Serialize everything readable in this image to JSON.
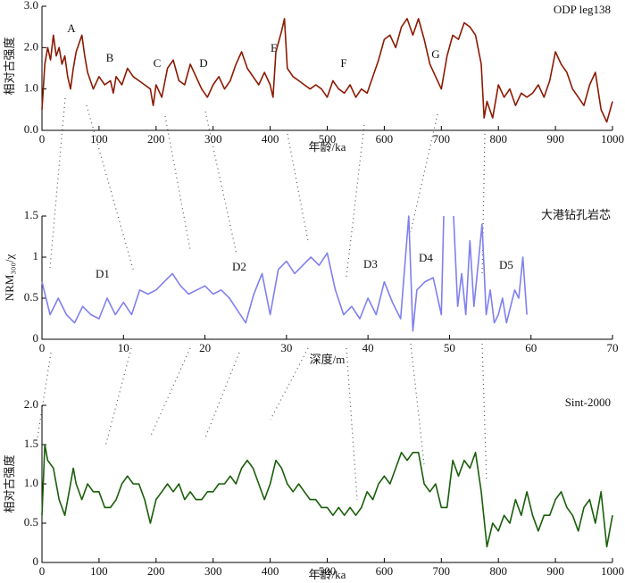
{
  "chart_data": [
    {
      "type": "line",
      "title": "ODP leg138",
      "xlabel": "年龄/ka",
      "ylabel": "相对古强度",
      "color": "#8b1a00",
      "annotations": [
        "A",
        "B",
        "C",
        "D",
        "E",
        "F",
        "G"
      ],
      "x": [
        0,
        5,
        10,
        15,
        20,
        25,
        30,
        35,
        40,
        45,
        50,
        55,
        60,
        65,
        70,
        75,
        80,
        85,
        90,
        100,
        110,
        120,
        125,
        130,
        140,
        150,
        160,
        170,
        180,
        190,
        195,
        200,
        210,
        220,
        230,
        240,
        250,
        260,
        270,
        280,
        290,
        300,
        310,
        320,
        330,
        340,
        350,
        360,
        370,
        380,
        390,
        400,
        405,
        410,
        420,
        425,
        430,
        440,
        450,
        460,
        470,
        480,
        490,
        500,
        510,
        520,
        530,
        540,
        550,
        560,
        570,
        580,
        590,
        600,
        610,
        620,
        630,
        640,
        650,
        660,
        670,
        680,
        690,
        700,
        710,
        720,
        730,
        740,
        750,
        760,
        770,
        775,
        780,
        790,
        800,
        810,
        820,
        830,
        840,
        850,
        860,
        870,
        880,
        890,
        900,
        910,
        920,
        930,
        940,
        950,
        960,
        970,
        980,
        990,
        1000
      ],
      "values": [
        0.5,
        1.6,
        2.0,
        1.7,
        2.3,
        1.8,
        2.0,
        1.6,
        1.8,
        1.3,
        1.0,
        1.5,
        1.9,
        2.1,
        2.3,
        1.8,
        1.4,
        1.2,
        1.0,
        1.3,
        1.1,
        1.2,
        0.9,
        1.3,
        1.1,
        1.5,
        1.3,
        1.2,
        1.1,
        1.0,
        0.6,
        1.1,
        0.8,
        1.5,
        1.7,
        1.2,
        1.1,
        1.6,
        1.3,
        1.0,
        0.8,
        1.1,
        1.3,
        1.0,
        1.2,
        1.6,
        1.9,
        1.5,
        1.3,
        1.1,
        1.4,
        1.1,
        0.8,
        1.9,
        2.4,
        2.7,
        1.5,
        1.3,
        1.2,
        1.1,
        1.0,
        1.1,
        1.0,
        0.8,
        1.2,
        1.0,
        0.9,
        1.1,
        0.8,
        1.0,
        0.9,
        1.3,
        1.7,
        2.2,
        2.3,
        2.0,
        2.5,
        2.7,
        2.3,
        2.7,
        2.2,
        1.6,
        1.3,
        1.0,
        1.8,
        2.3,
        2.2,
        2.6,
        2.5,
        2.3,
        1.6,
        0.3,
        0.7,
        0.3,
        1.1,
        0.8,
        1.0,
        0.6,
        0.9,
        0.8,
        0.9,
        1.1,
        0.8,
        1.2,
        1.9,
        1.6,
        1.4,
        1.0,
        0.8,
        0.6,
        1.1,
        1.4,
        0.5,
        0.2,
        0.7
      ],
      "xlim": [
        0,
        1000
      ],
      "xticks": [
        0,
        100,
        200,
        300,
        400,
        500,
        600,
        700,
        800,
        900,
        1000
      ],
      "ylim": [
        0,
        3
      ],
      "yticks": [
        {
          "value": 0,
          "label": "0.0"
        },
        {
          "value": 1,
          "label": "1.0"
        },
        {
          "value": 2,
          "label": "2.0"
        },
        {
          "value": 3,
          "label": "3.0"
        }
      ]
    },
    {
      "type": "line",
      "title": "大港钻孔岩芯",
      "xlabel": "深度/m",
      "ylabel": "NRM₃₀₀/χ",
      "color": "#8080ee",
      "annotations": [
        "D1",
        "D2",
        "D3",
        "D4",
        "D5"
      ],
      "x": [
        0,
        1,
        2,
        3,
        4,
        5,
        6,
        7,
        8,
        9,
        10,
        11,
        12,
        13,
        14,
        15,
        16,
        17,
        18,
        19,
        20,
        21,
        22,
        23,
        24,
        25,
        26,
        27,
        28,
        29,
        30,
        31,
        32,
        33,
        34,
        35,
        36,
        37,
        38,
        39,
        40,
        41,
        42,
        43,
        44,
        45,
        45.5,
        46,
        47,
        48,
        49,
        49.3,
        50,
        50.5,
        51,
        51.5,
        52,
        52.5,
        53,
        53.5,
        54,
        54.5,
        55,
        55.5,
        56,
        56.5,
        57,
        57.5,
        58,
        58.5,
        59,
        59.5
      ],
      "values": [
        0.7,
        0.3,
        0.5,
        0.3,
        0.2,
        0.4,
        0.3,
        0.25,
        0.5,
        0.3,
        0.45,
        0.3,
        0.6,
        0.55,
        0.6,
        0.7,
        0.8,
        0.65,
        0.55,
        0.6,
        0.65,
        0.55,
        0.6,
        0.5,
        0.35,
        0.2,
        0.55,
        0.8,
        0.3,
        0.85,
        0.95,
        0.8,
        0.9,
        1.0,
        0.9,
        1.05,
        0.6,
        0.3,
        0.4,
        0.25,
        0.5,
        0.3,
        0.7,
        0.45,
        0.25,
        1.5,
        0.1,
        0.6,
        0.7,
        0.75,
        0.3,
        1.5,
        null,
        1.5,
        0.4,
        0.8,
        0.3,
        1.2,
        0.4,
        0.9,
        1.4,
        0.3,
        0.6,
        0.2,
        0.3,
        0.5,
        0.2,
        0.4,
        0.6,
        0.5,
        1.0,
        0.3
      ],
      "xlim": [
        0,
        70
      ],
      "xticks": [
        0,
        10,
        20,
        30,
        40,
        50,
        60,
        70
      ],
      "ylim": [
        0,
        1.5
      ],
      "yticks": [
        0,
        0.5,
        1,
        1.5
      ]
    },
    {
      "type": "line",
      "title": "Sint-2000",
      "xlabel": "年龄/ka",
      "ylabel": "相对古强度",
      "color": "#1a5e0a",
      "annotations": [],
      "x": [
        0,
        5,
        10,
        20,
        30,
        40,
        50,
        55,
        60,
        70,
        80,
        90,
        100,
        110,
        120,
        130,
        140,
        150,
        160,
        170,
        180,
        190,
        200,
        210,
        220,
        230,
        240,
        250,
        260,
        270,
        280,
        290,
        300,
        310,
        320,
        330,
        340,
        350,
        360,
        370,
        380,
        390,
        400,
        410,
        420,
        430,
        440,
        450,
        460,
        470,
        480,
        490,
        500,
        510,
        520,
        530,
        540,
        550,
        560,
        570,
        580,
        590,
        600,
        610,
        620,
        630,
        640,
        650,
        660,
        670,
        680,
        690,
        700,
        710,
        720,
        730,
        740,
        750,
        760,
        770,
        780,
        790,
        800,
        810,
        820,
        830,
        840,
        850,
        860,
        870,
        880,
        890,
        900,
        910,
        920,
        930,
        940,
        950,
        960,
        970,
        980,
        990,
        1000
      ],
      "values": [
        0.6,
        1.5,
        1.3,
        1.2,
        0.8,
        0.6,
        1.0,
        1.2,
        1.0,
        0.8,
        1.0,
        0.9,
        0.9,
        0.7,
        0.7,
        0.8,
        1.0,
        1.1,
        1.0,
        1.0,
        0.8,
        0.5,
        0.8,
        0.9,
        1.0,
        0.9,
        1.0,
        0.8,
        0.9,
        0.8,
        0.8,
        0.9,
        0.9,
        1.0,
        1.0,
        1.1,
        1.0,
        1.2,
        1.3,
        1.2,
        1.0,
        0.8,
        1.0,
        1.3,
        1.2,
        1.0,
        0.9,
        1.0,
        0.9,
        0.8,
        0.8,
        0.7,
        0.7,
        0.6,
        0.7,
        0.6,
        0.7,
        0.6,
        0.7,
        0.9,
        0.8,
        1.0,
        1.1,
        1.0,
        1.2,
        1.4,
        1.3,
        1.4,
        1.4,
        1.0,
        0.9,
        1.0,
        0.7,
        0.7,
        1.3,
        1.1,
        1.3,
        1.2,
        1.4,
        0.9,
        0.2,
        0.5,
        0.4,
        0.6,
        0.5,
        0.8,
        0.6,
        0.9,
        0.6,
        0.4,
        0.6,
        0.6,
        0.8,
        0.9,
        0.7,
        0.6,
        0.4,
        0.7,
        0.8,
        0.5,
        0.9,
        0.2,
        0.6
      ],
      "xlim": [
        0,
        1000
      ],
      "xticks": [
        0,
        100,
        200,
        300,
        400,
        500,
        600,
        700,
        800,
        900,
        1000
      ],
      "ylim": [
        0,
        2
      ],
      "yticks": [
        0,
        0.5,
        {
          "value": 1,
          "label": "1.0"
        },
        1.5,
        {
          "value": 2,
          "label": "2.0"
        }
      ]
    }
  ]
}
